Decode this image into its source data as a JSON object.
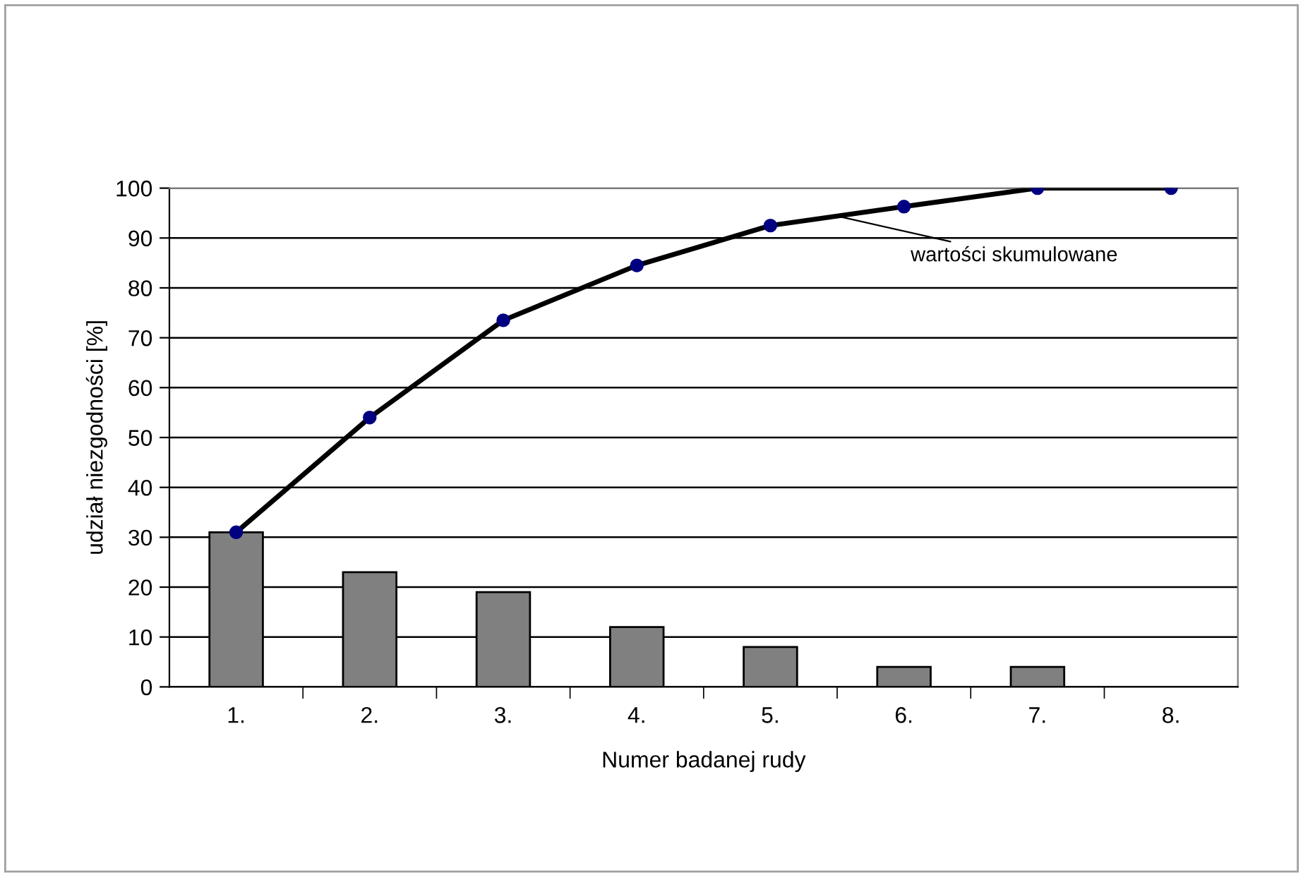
{
  "chart_data": {
    "type": "bar",
    "xlabel": "Numer badanej rudy",
    "ylabel": "udział niezgodności [%]",
    "categories": [
      "1.",
      "2.",
      "3.",
      "4.",
      "5.",
      "6.",
      "7.",
      "8."
    ],
    "series": [
      {
        "color": "#808080",
        "values": [
          31,
          23,
          19,
          12,
          8,
          4,
          4,
          null
        ]
      },
      {
        "type": "line",
        "name": "wartości skumulowane",
        "color": "#000080",
        "values": [
          31,
          54,
          73.5,
          84.5,
          92.5,
          96.3,
          100,
          100
        ]
      }
    ],
    "ylim": [
      0,
      100
    ],
    "yticks": [
      0,
      10,
      20,
      30,
      40,
      50,
      60,
      70,
      80,
      90,
      100
    ],
    "grid": "y",
    "legend": false,
    "marker": "circle",
    "line_style": "solid"
  }
}
